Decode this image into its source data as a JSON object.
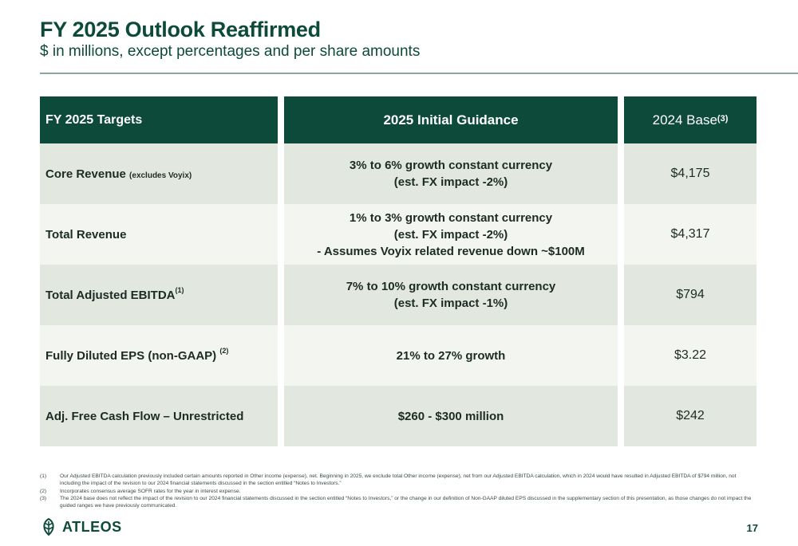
{
  "header": {
    "title": "FY 2025 Outlook Reaffirmed",
    "subtitle": "$ in millions, except percentages and per share amounts"
  },
  "table": {
    "columns": {
      "targets": "FY 2025 Targets",
      "guidance": "2025 Initial Guidance",
      "base": "2024 Base",
      "base_sup": "(3)"
    },
    "rows": [
      {
        "label": "Core Revenue",
        "label_small": "(excludes Voyix)",
        "label_sup": "",
        "guidance": [
          "3% to 6% growth constant currency",
          "(est. FX impact -2%)"
        ],
        "base": "$4,175"
      },
      {
        "label": "Total Revenue",
        "label_small": "",
        "label_sup": "",
        "guidance": [
          "1% to 3% growth constant currency",
          "(est. FX impact -2%)",
          "- Assumes Voyix related revenue down ~$100M"
        ],
        "base": "$4,317"
      },
      {
        "label": "Total Adjusted EBITDA",
        "label_small": "",
        "label_sup": "(1)",
        "guidance": [
          "7% to 10% growth constant currency",
          "(est. FX impact -1%)"
        ],
        "base": "$794"
      },
      {
        "label": "Fully Diluted EPS (non-GAAP)",
        "label_small": "",
        "label_sup": "(2)",
        "guidance": [
          "21% to 27% growth"
        ],
        "base": "$3.22"
      },
      {
        "label": "Adj. Free Cash Flow – Unrestricted",
        "label_small": "",
        "label_sup": "",
        "guidance": [
          "$260 - $300 million"
        ],
        "base": "$242"
      }
    ]
  },
  "footnotes": [
    {
      "num": "(1)",
      "text": "Our Adjusted EBITDA calculation previously included certain amounts reported in Other income (expense), net. Beginning in 2025, we exclude total Other income (expense), net from our Adjusted EBITDA calculation, which in 2024 would have resulted in Adjusted EBITDA of $794 million, not including the impact of the revision to our 2024 financial statements discussed in the section entitled “Notes to Investors.”"
    },
    {
      "num": "(2)",
      "text": "Incorporates consensus average SOFR rates for the year in interest expense."
    },
    {
      "num": "(3)",
      "text": "The 2024 base does not reflect the impact of the revision to our 2024 financial statements discussed in the section entitled “Notes to Investors,” or the change in our definition of Non-GAAP diluted EPS discussed in the supplementary section of this presentation, as those changes do not impact the guided ranges we have previously communicated."
    }
  ],
  "footer": {
    "logo_text": "ATLEOS",
    "page_number": "17"
  },
  "colors": {
    "brand_green": "#0d4a3a",
    "row_shade": "#e2e8df",
    "row_light": "#f3f5f1"
  }
}
